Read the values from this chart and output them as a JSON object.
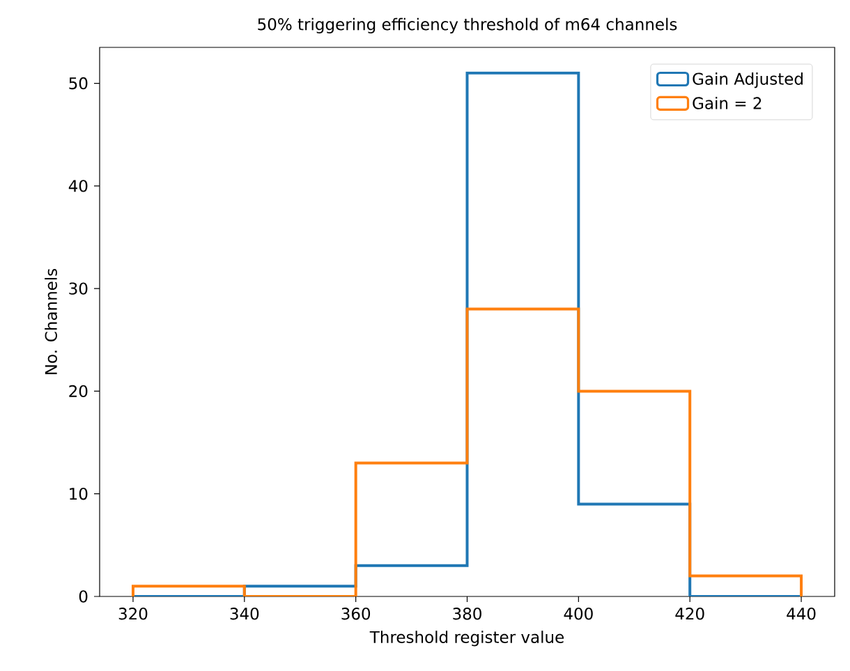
{
  "chart_data": {
    "type": "histogram",
    "title": "50% triggering efficiency threshold of m64 channels",
    "xlabel": "Threshold register value",
    "ylabel": "No. Channels",
    "bins": [
      320,
      340,
      360,
      380,
      400,
      420,
      440
    ],
    "series": [
      {
        "name": "Gain Adjusted",
        "color": "#1f77b4",
        "values": [
          0,
          1,
          3,
          51,
          9,
          0
        ]
      },
      {
        "name": "Gain = 2",
        "color": "#ff7f0e",
        "values": [
          1,
          0,
          13,
          28,
          20,
          2
        ]
      }
    ],
    "xlim": [
      314,
      446
    ],
    "ylim": [
      0,
      53.5
    ],
    "xticks": [
      320,
      340,
      360,
      380,
      400,
      420,
      440
    ],
    "yticks": [
      0,
      10,
      20,
      30,
      40,
      50
    ],
    "grid": false,
    "legend": "top right"
  }
}
